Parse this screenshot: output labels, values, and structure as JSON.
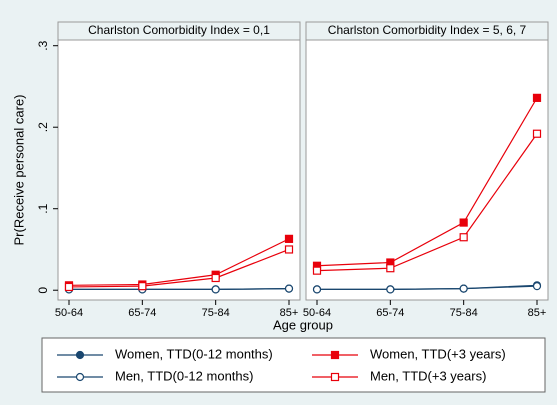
{
  "chart_data": {
    "type": "line",
    "y_label": "Pr(Receive personal care)",
    "x_label": "Age group",
    "categories": [
      "50-64",
      "65-74",
      "75-84",
      "85+"
    ],
    "ylim": [
      -0.012,
      0.307
    ],
    "yticks": [
      0,
      {
        "value": 0.1,
        "label": ".1"
      },
      {
        "value": 0.2,
        "label": ".2"
      },
      {
        "value": 0.3,
        "label": ".3"
      }
    ],
    "series": [
      {
        "name": "Women, TTD(0-12 months)",
        "color": "#1a476f",
        "marker": "circle",
        "filled": true
      },
      {
        "name": "Men, TTD(0-12 months)",
        "color": "#1a476f",
        "marker": "circle",
        "filled": false
      },
      {
        "name": "Women, TTD(+3 years)",
        "color": "#e8000b",
        "marker": "square",
        "filled": true
      },
      {
        "name": "Men, TTD(+3 years)",
        "color": "#e8000b",
        "marker": "square",
        "filled": false
      }
    ],
    "panels": [
      {
        "title": "Charlston Comorbidity Index = 0,1",
        "values": [
          [
            0.001,
            0.001,
            0.001,
            0.002
          ],
          [
            0.001,
            0.001,
            0.001,
            0.002
          ],
          [
            0.006,
            0.007,
            0.019,
            0.063
          ],
          [
            0.004,
            0.005,
            0.015,
            0.05
          ]
        ]
      },
      {
        "title": "Charlston Comorbidity Index = 5, 6, 7",
        "values": [
          [
            0.001,
            0.001,
            0.002,
            0.006
          ],
          [
            0.001,
            0.001,
            0.002,
            0.005
          ],
          [
            0.03,
            0.034,
            0.083,
            0.236
          ],
          [
            0.024,
            0.027,
            0.065,
            0.192
          ]
        ]
      }
    ]
  }
}
